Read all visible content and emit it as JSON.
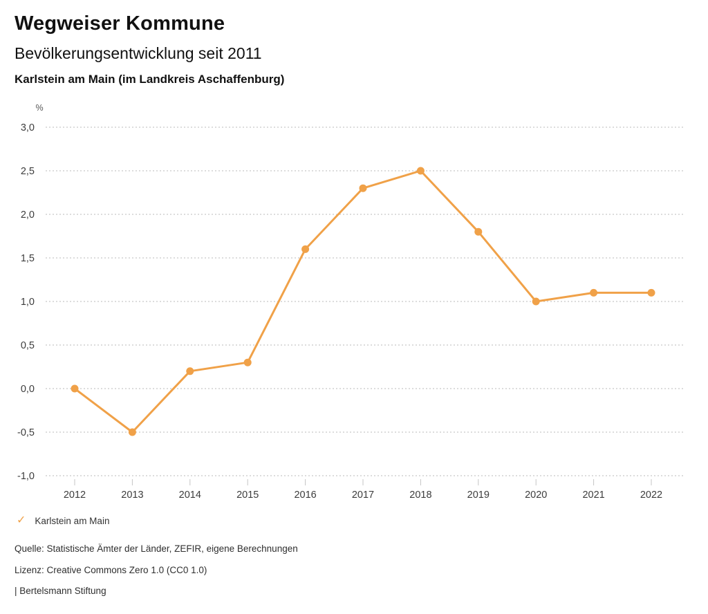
{
  "header": {
    "title": "Wegweiser Kommune",
    "subtitle": "Bevölkerungsentwicklung seit 2011",
    "location": "Karlstein am Main (im Landkreis Aschaffenburg)"
  },
  "chart_data": {
    "type": "line",
    "title": "Bevölkerungsentwicklung seit 2011",
    "xlabel": "",
    "ylabel": "%",
    "unit_label": "%",
    "categories": [
      "2012",
      "2013",
      "2014",
      "2015",
      "2016",
      "2017",
      "2018",
      "2019",
      "2020",
      "2021",
      "2022"
    ],
    "series": [
      {
        "name": "Karlstein am Main",
        "color": "#F0A148",
        "values": [
          0.0,
          -0.5,
          0.2,
          0.3,
          1.6,
          2.3,
          2.5,
          1.8,
          1.0,
          1.1,
          1.1
        ]
      }
    ],
    "ylim": [
      -1.0,
      3.0
    ],
    "ytick_values": [
      3.0,
      2.5,
      2.0,
      1.5,
      1.0,
      0.5,
      0.0,
      -0.5,
      -1.0
    ],
    "ytick_labels": [
      "3,0",
      "2,5",
      "2,0",
      "1,5",
      "1,0",
      "0,5",
      "0,0",
      "-0,5",
      "-1,0"
    ],
    "grid": "horizontal-dotted",
    "legend_position": "bottom-left"
  },
  "legend": {
    "check_icon": "✓",
    "label": "Karlstein am Main"
  },
  "footer": {
    "source": "Quelle: Statistische Ämter der Länder, ZEFIR, eigene Berechnungen",
    "license": "Lizenz: Creative Commons Zero 1.0 (CC0 1.0)",
    "attribution": "| Bertelsmann Stiftung"
  },
  "colors": {
    "line": "#F0A148",
    "grid": "#B8B8B8",
    "tick": "#C4C4C4",
    "axis_text": "#3C3C3C",
    "title_text": "#111111",
    "footer_text": "#2E2E2E"
  }
}
